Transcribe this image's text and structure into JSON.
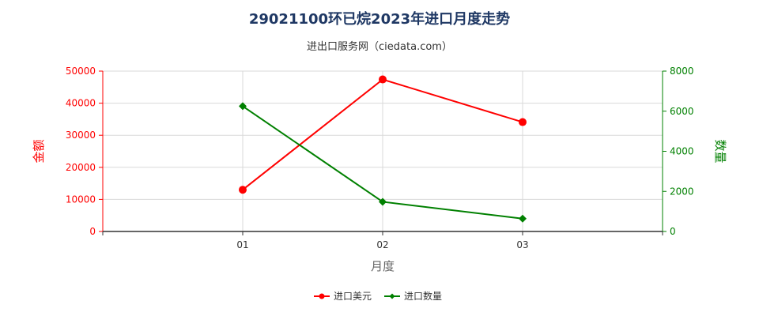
{
  "title": "29021100环已烷2023年进口月度走势",
  "subtitle": "进出口服务网（ciedata.com）",
  "chart_data": {
    "type": "line",
    "categories": [
      "01",
      "02",
      "03"
    ],
    "series": [
      {
        "name": "进口美元",
        "axis": "left",
        "color": "#ff0000",
        "marker": "circle",
        "values": [
          13000,
          47400,
          34100
        ]
      },
      {
        "name": "进口数量",
        "axis": "right",
        "color": "#008000",
        "marker": "diamond",
        "values": [
          6250,
          1480,
          640
        ]
      }
    ],
    "xlabel": "月度",
    "ylabel_left": "金额",
    "ylabel_right": "数量",
    "ylim_left": [
      0,
      50000
    ],
    "ylim_right": [
      0,
      8000
    ],
    "yticks_left": [
      "0",
      "10000",
      "20000",
      "30000",
      "40000",
      "50000"
    ],
    "yticks_right": [
      "0",
      "2000",
      "4000",
      "6000",
      "8000"
    ],
    "grid": true,
    "legend_position": "bottom"
  }
}
